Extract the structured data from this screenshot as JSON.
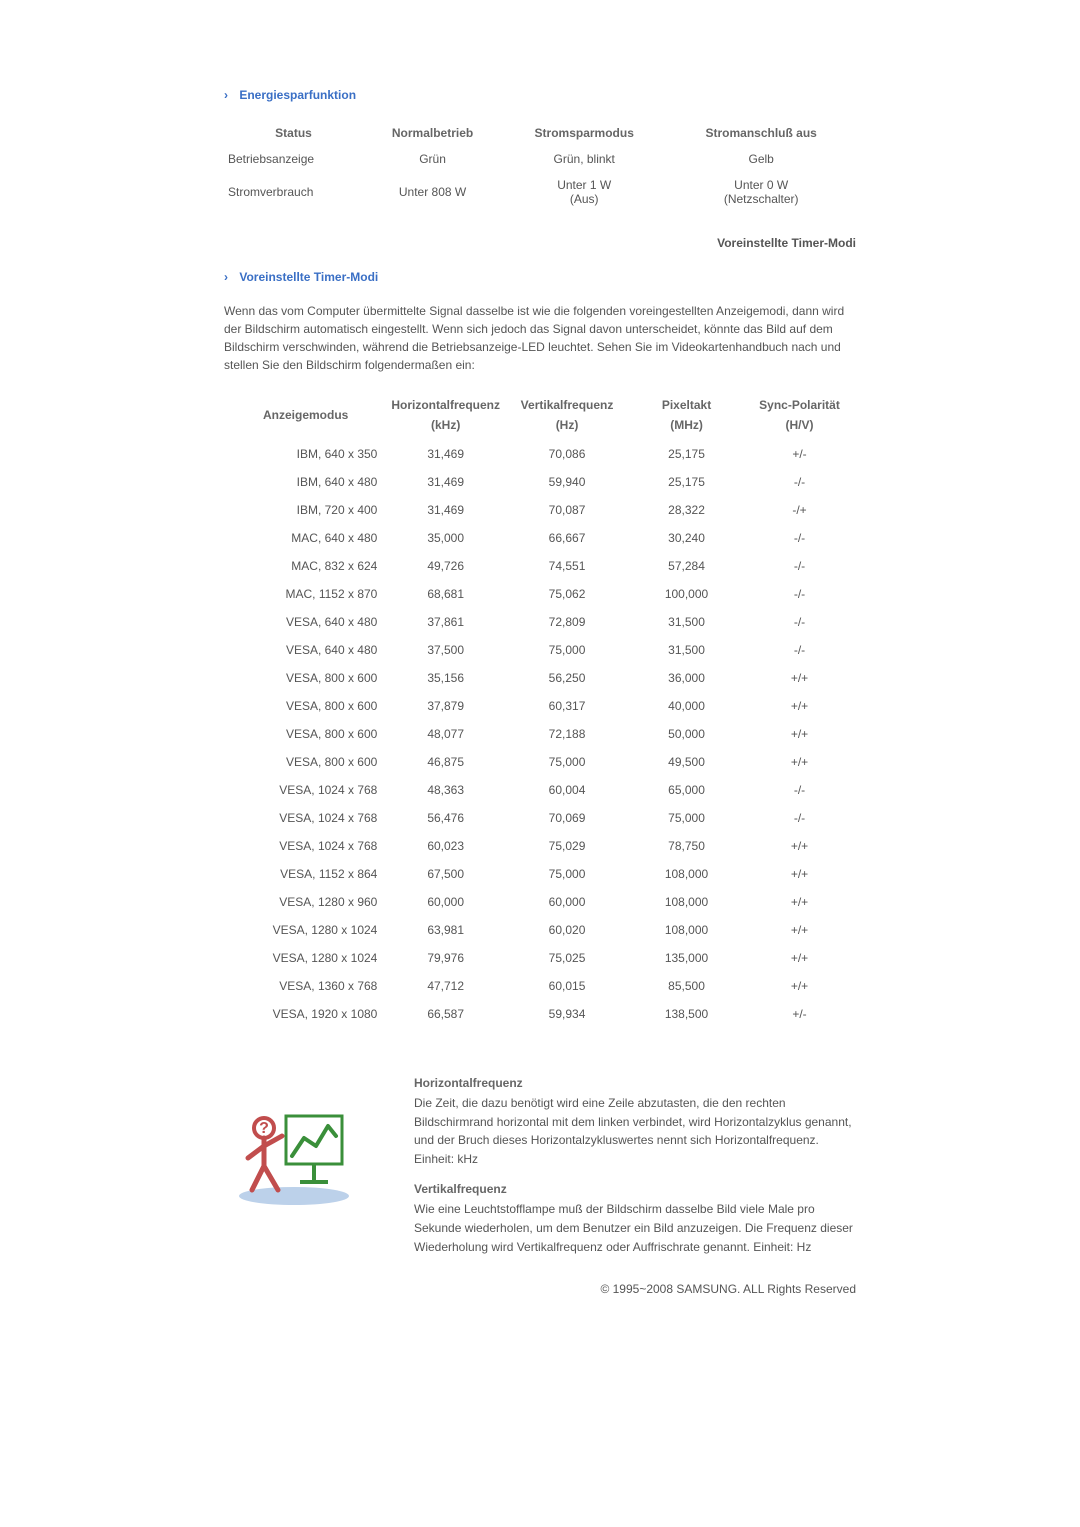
{
  "sections": {
    "energy": {
      "heading": "Energiesparfunktion"
    },
    "preset": {
      "heading": "Voreinstellte Timer-Modi",
      "link_text": "Voreinstellte Timer-Modi",
      "body": "Wenn das vom Computer übermittelte Signal dasselbe ist wie die folgenden voreingestellten Anzeigemodi, dann wird der Bildschirm automatisch eingestellt. Wenn sich jedoch das Signal davon unterscheidet, könnte das Bild auf dem Bildschirm verschwinden, während die Betriebsanzeige-LED leuchtet. Sehen Sie im Videokartenhandbuch nach und stellen Sie den Bildschirm folgendermaßen ein:"
    }
  },
  "power_table": {
    "headers": {
      "status": "Status",
      "normal": "Normalbetrieb",
      "save": "Stromsparmodus",
      "off": "Stromanschluß aus"
    },
    "rows": [
      {
        "label": "Betriebsanzeige",
        "normal": "Grün",
        "save": "Grün, blinkt",
        "off": "Gelb"
      },
      {
        "label": "Stromverbrauch",
        "normal": "Unter 808 W",
        "save_line1": "Unter 1 W",
        "save_line2": "(Aus)",
        "off_line1": "Unter 0 W",
        "off_line2": "(Netzschalter)"
      }
    ]
  },
  "timer_table": {
    "headers": {
      "mode": "Anzeigemodus",
      "hfreq": "Horizontalfrequenz",
      "hfreq_unit": "(kHz)",
      "vfreq": "Vertikalfrequenz",
      "vfreq_unit": "(Hz)",
      "pixel": "Pixeltakt",
      "pixel_unit": "(MHz)",
      "sync": "Sync-Polarität",
      "sync_unit": "(H/V)"
    },
    "col_widths": [
      "26%",
      "18%",
      "20%",
      "18%",
      "18%"
    ],
    "rows": [
      [
        "IBM, 640 x 350",
        "31,469",
        "70,086",
        "25,175",
        "+/-"
      ],
      [
        "IBM, 640 x 480",
        "31,469",
        "59,940",
        "25,175",
        "-/-"
      ],
      [
        "IBM, 720 x 400",
        "31,469",
        "70,087",
        "28,322",
        "-/+"
      ],
      [
        "MAC, 640 x 480",
        "35,000",
        "66,667",
        "30,240",
        "-/-"
      ],
      [
        "MAC, 832 x 624",
        "49,726",
        "74,551",
        "57,284",
        "-/-"
      ],
      [
        "MAC, 1152 x 870",
        "68,681",
        "75,062",
        "100,000",
        "-/-"
      ],
      [
        "VESA, 640 x 480",
        "37,861",
        "72,809",
        "31,500",
        "-/-"
      ],
      [
        "VESA, 640 x 480",
        "37,500",
        "75,000",
        "31,500",
        "-/-"
      ],
      [
        "VESA, 800 x 600",
        "35,156",
        "56,250",
        "36,000",
        "+/+"
      ],
      [
        "VESA, 800 x 600",
        "37,879",
        "60,317",
        "40,000",
        "+/+"
      ],
      [
        "VESA, 800 x 600",
        "48,077",
        "72,188",
        "50,000",
        "+/+"
      ],
      [
        "VESA, 800 x 600",
        "46,875",
        "75,000",
        "49,500",
        "+/+"
      ],
      [
        "VESA, 1024 x 768",
        "48,363",
        "60,004",
        "65,000",
        "-/-"
      ],
      [
        "VESA, 1024 x 768",
        "56,476",
        "70,069",
        "75,000",
        "-/-"
      ],
      [
        "VESA, 1024 x 768",
        "60,023",
        "75,029",
        "78,750",
        "+/+"
      ],
      [
        "VESA, 1152 x 864",
        "67,500",
        "75,000",
        "108,000",
        "+/+"
      ],
      [
        "VESA, 1280 x 960",
        "60,000",
        "60,000",
        "108,000",
        "+/+"
      ],
      [
        "VESA, 1280 x 1024",
        "63,981",
        "60,020",
        "108,000",
        "+/+"
      ],
      [
        "VESA, 1280 x 1024",
        "79,976",
        "75,025",
        "135,000",
        "+/+"
      ],
      [
        "VESA, 1360 x 768",
        "47,712",
        "60,015",
        "85,500",
        "+/+"
      ],
      [
        "VESA, 1920 x 1080",
        "66,587",
        "59,934",
        "138,500",
        "+/-"
      ]
    ]
  },
  "definitions": {
    "hfreq_title": "Horizontalfrequenz",
    "hfreq_body": "Die Zeit, die dazu benötigt wird eine Zeile abzutasten, die den rechten Bildschirmrand horizontal mit dem linken verbindet, wird Horizontalzyklus genannt, und der Bruch dieses Horizontalzykluswertes nennt sich Horizontalfrequenz. Einheit: kHz",
    "vfreq_title": "Vertikalfrequenz",
    "vfreq_body": "Wie eine Leuchtstofflampe muß der Bildschirm dasselbe Bild viele Male pro Sekunde wiederholen, um dem Benutzer ein Bild anzuzeigen. Die Frequenz dieser Wiederholung wird Vertikalfrequenz oder Auffrischrate genannt. Einheit: Hz",
    "icon_colors": {
      "person": "#c14d4d",
      "chart": "#3a8f3a",
      "shadow": "#7aa3d6"
    }
  },
  "copyright": "© 1995~2008 SAMSUNG. ALL Rights Reserved"
}
